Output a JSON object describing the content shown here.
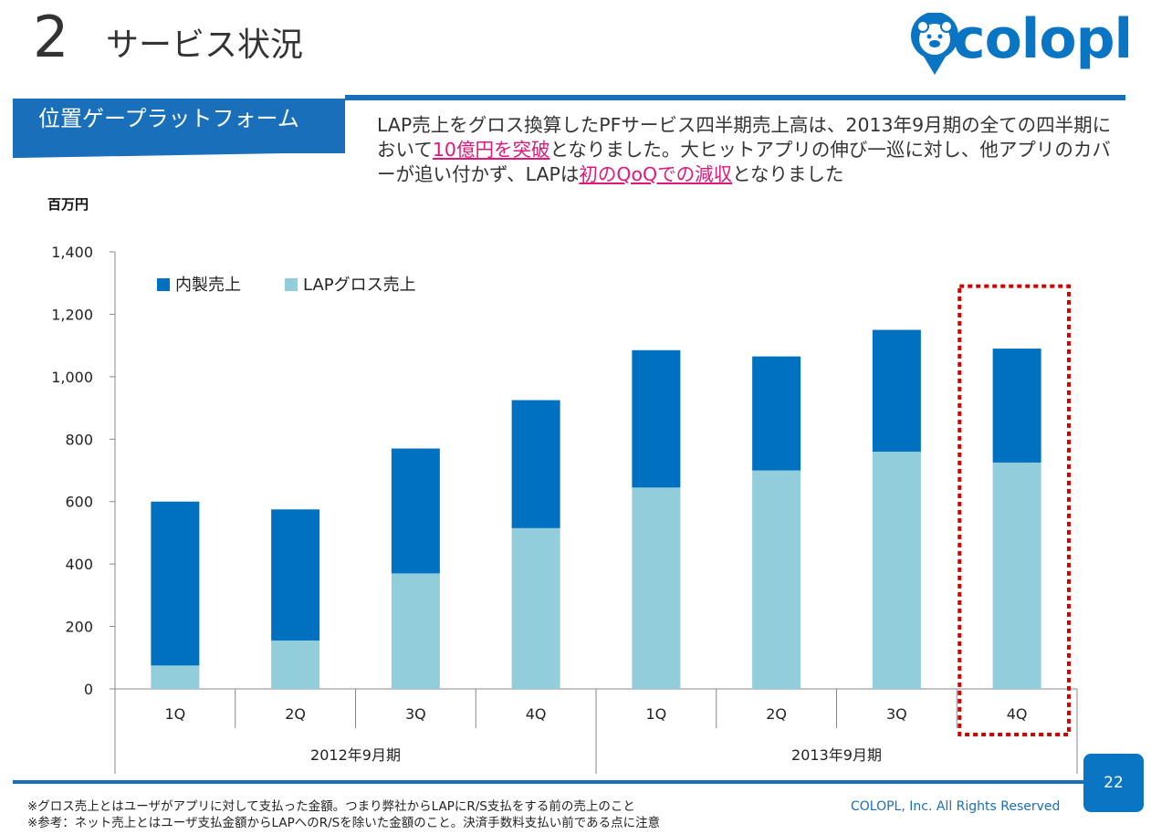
{
  "header": {
    "section_number": "2",
    "section_title": "サービス状況",
    "logo_text": "colopl"
  },
  "tag": {
    "label": "位置ゲープラットフォーム"
  },
  "description": {
    "part1": "LAP売上をグロス換算したPFサービス四半期売上高は、2013年9月期の全ての四半期において",
    "highlight1": "10億円を突破",
    "part2": "となりました。大ヒットアプリの伸び一巡に対し、他アプリのカバーが追い付かず、LAPは",
    "highlight2": "初のQoQでの減収",
    "part3": "となりました"
  },
  "colors": {
    "accent": "#1a6fba",
    "highlight": "#e0177a",
    "series_internal": "#0070c0",
    "series_lap": "#92cddc",
    "focus_box": "#d40000"
  },
  "chart_data": {
    "type": "bar",
    "stacked": true,
    "unit_label": "百万円",
    "categories": [
      "1Q",
      "2Q",
      "3Q",
      "4Q",
      "1Q",
      "2Q",
      "3Q",
      "4Q"
    ],
    "groups": [
      {
        "label": "2012年9月期",
        "count": 4
      },
      {
        "label": "2013年9月期",
        "count": 4
      }
    ],
    "series": [
      {
        "name": "LAPグロス売上",
        "color": "#92cddc",
        "values": [
          75,
          155,
          370,
          515,
          645,
          700,
          760,
          725
        ]
      },
      {
        "name": "内製売上",
        "color": "#0070c0",
        "values": [
          525,
          420,
          400,
          410,
          440,
          365,
          390,
          365
        ]
      }
    ],
    "legend_order": [
      "内製売上",
      "LAPグロス売上"
    ],
    "ylim": [
      0,
      1400
    ],
    "yticks": [
      0,
      200,
      400,
      600,
      800,
      1000,
      1200,
      1400
    ],
    "ytick_labels": [
      "0",
      "200",
      "400",
      "600",
      "800",
      "1,000",
      "1,200",
      "1,400"
    ],
    "highlighted_index": 7,
    "grid": false,
    "legend_position": "top-left"
  },
  "footer": {
    "note1": "※グロス売上とはユーザがアプリに対して支払った金額。つまり弊社からLAPにR/S支払をする前の売上のこと",
    "note2": "※参考：ネット売上とはユーザ支払金額からLAPへのR/Sを除いた金額のこと。決済手数料支払い前である点に注意",
    "copyright": "COLOPL, Inc. All Rights Reserved",
    "page_number": "22"
  }
}
